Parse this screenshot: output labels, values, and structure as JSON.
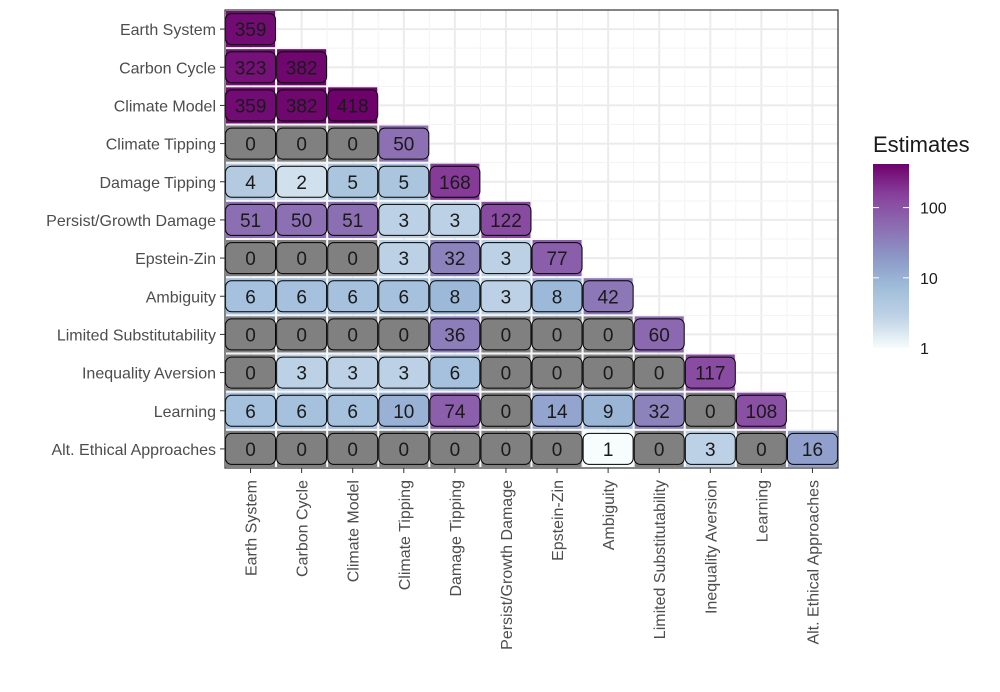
{
  "chart_data": {
    "type": "heatmap",
    "title": "",
    "xlabel": "",
    "ylabel": "",
    "categories": [
      "Earth System",
      "Carbon Cycle",
      "Climate Model",
      "Climate Tipping",
      "Damage Tipping",
      "Persist/Growth Damage",
      "Epstein-Zin",
      "Ambiguity",
      "Limited Substitutability",
      "Inequality Aversion",
      "Learning",
      "Alt. Ethical Approaches"
    ],
    "values": [
      [
        359
      ],
      [
        323,
        382
      ],
      [
        359,
        382,
        418
      ],
      [
        0,
        0,
        0,
        50
      ],
      [
        4,
        2,
        5,
        5,
        168
      ],
      [
        51,
        50,
        51,
        3,
        3,
        122
      ],
      [
        0,
        0,
        0,
        3,
        32,
        3,
        77
      ],
      [
        6,
        6,
        6,
        6,
        8,
        3,
        8,
        42
      ],
      [
        0,
        0,
        0,
        0,
        36,
        0,
        0,
        0,
        60
      ],
      [
        0,
        3,
        3,
        3,
        6,
        0,
        0,
        0,
        0,
        117
      ],
      [
        6,
        6,
        6,
        10,
        74,
        0,
        14,
        9,
        32,
        0,
        108
      ],
      [
        0,
        0,
        0,
        0,
        0,
        0,
        0,
        1,
        0,
        3,
        0,
        16
      ]
    ],
    "zero_color": "#808080",
    "color_scale": {
      "log": true,
      "low_color": "#f7fcfd",
      "mid_colors": [
        "#bfd3e6",
        "#9ebcda",
        "#8c96c6",
        "#8c6bb1",
        "#88419d"
      ],
      "high_color": "#6e016b",
      "range": [
        1,
        418
      ]
    },
    "legend": {
      "title": "Estimates",
      "ticks": [
        "1",
        "10",
        "100"
      ],
      "tick_values": [
        1,
        10,
        100
      ],
      "placement": "right"
    },
    "grid": true
  }
}
